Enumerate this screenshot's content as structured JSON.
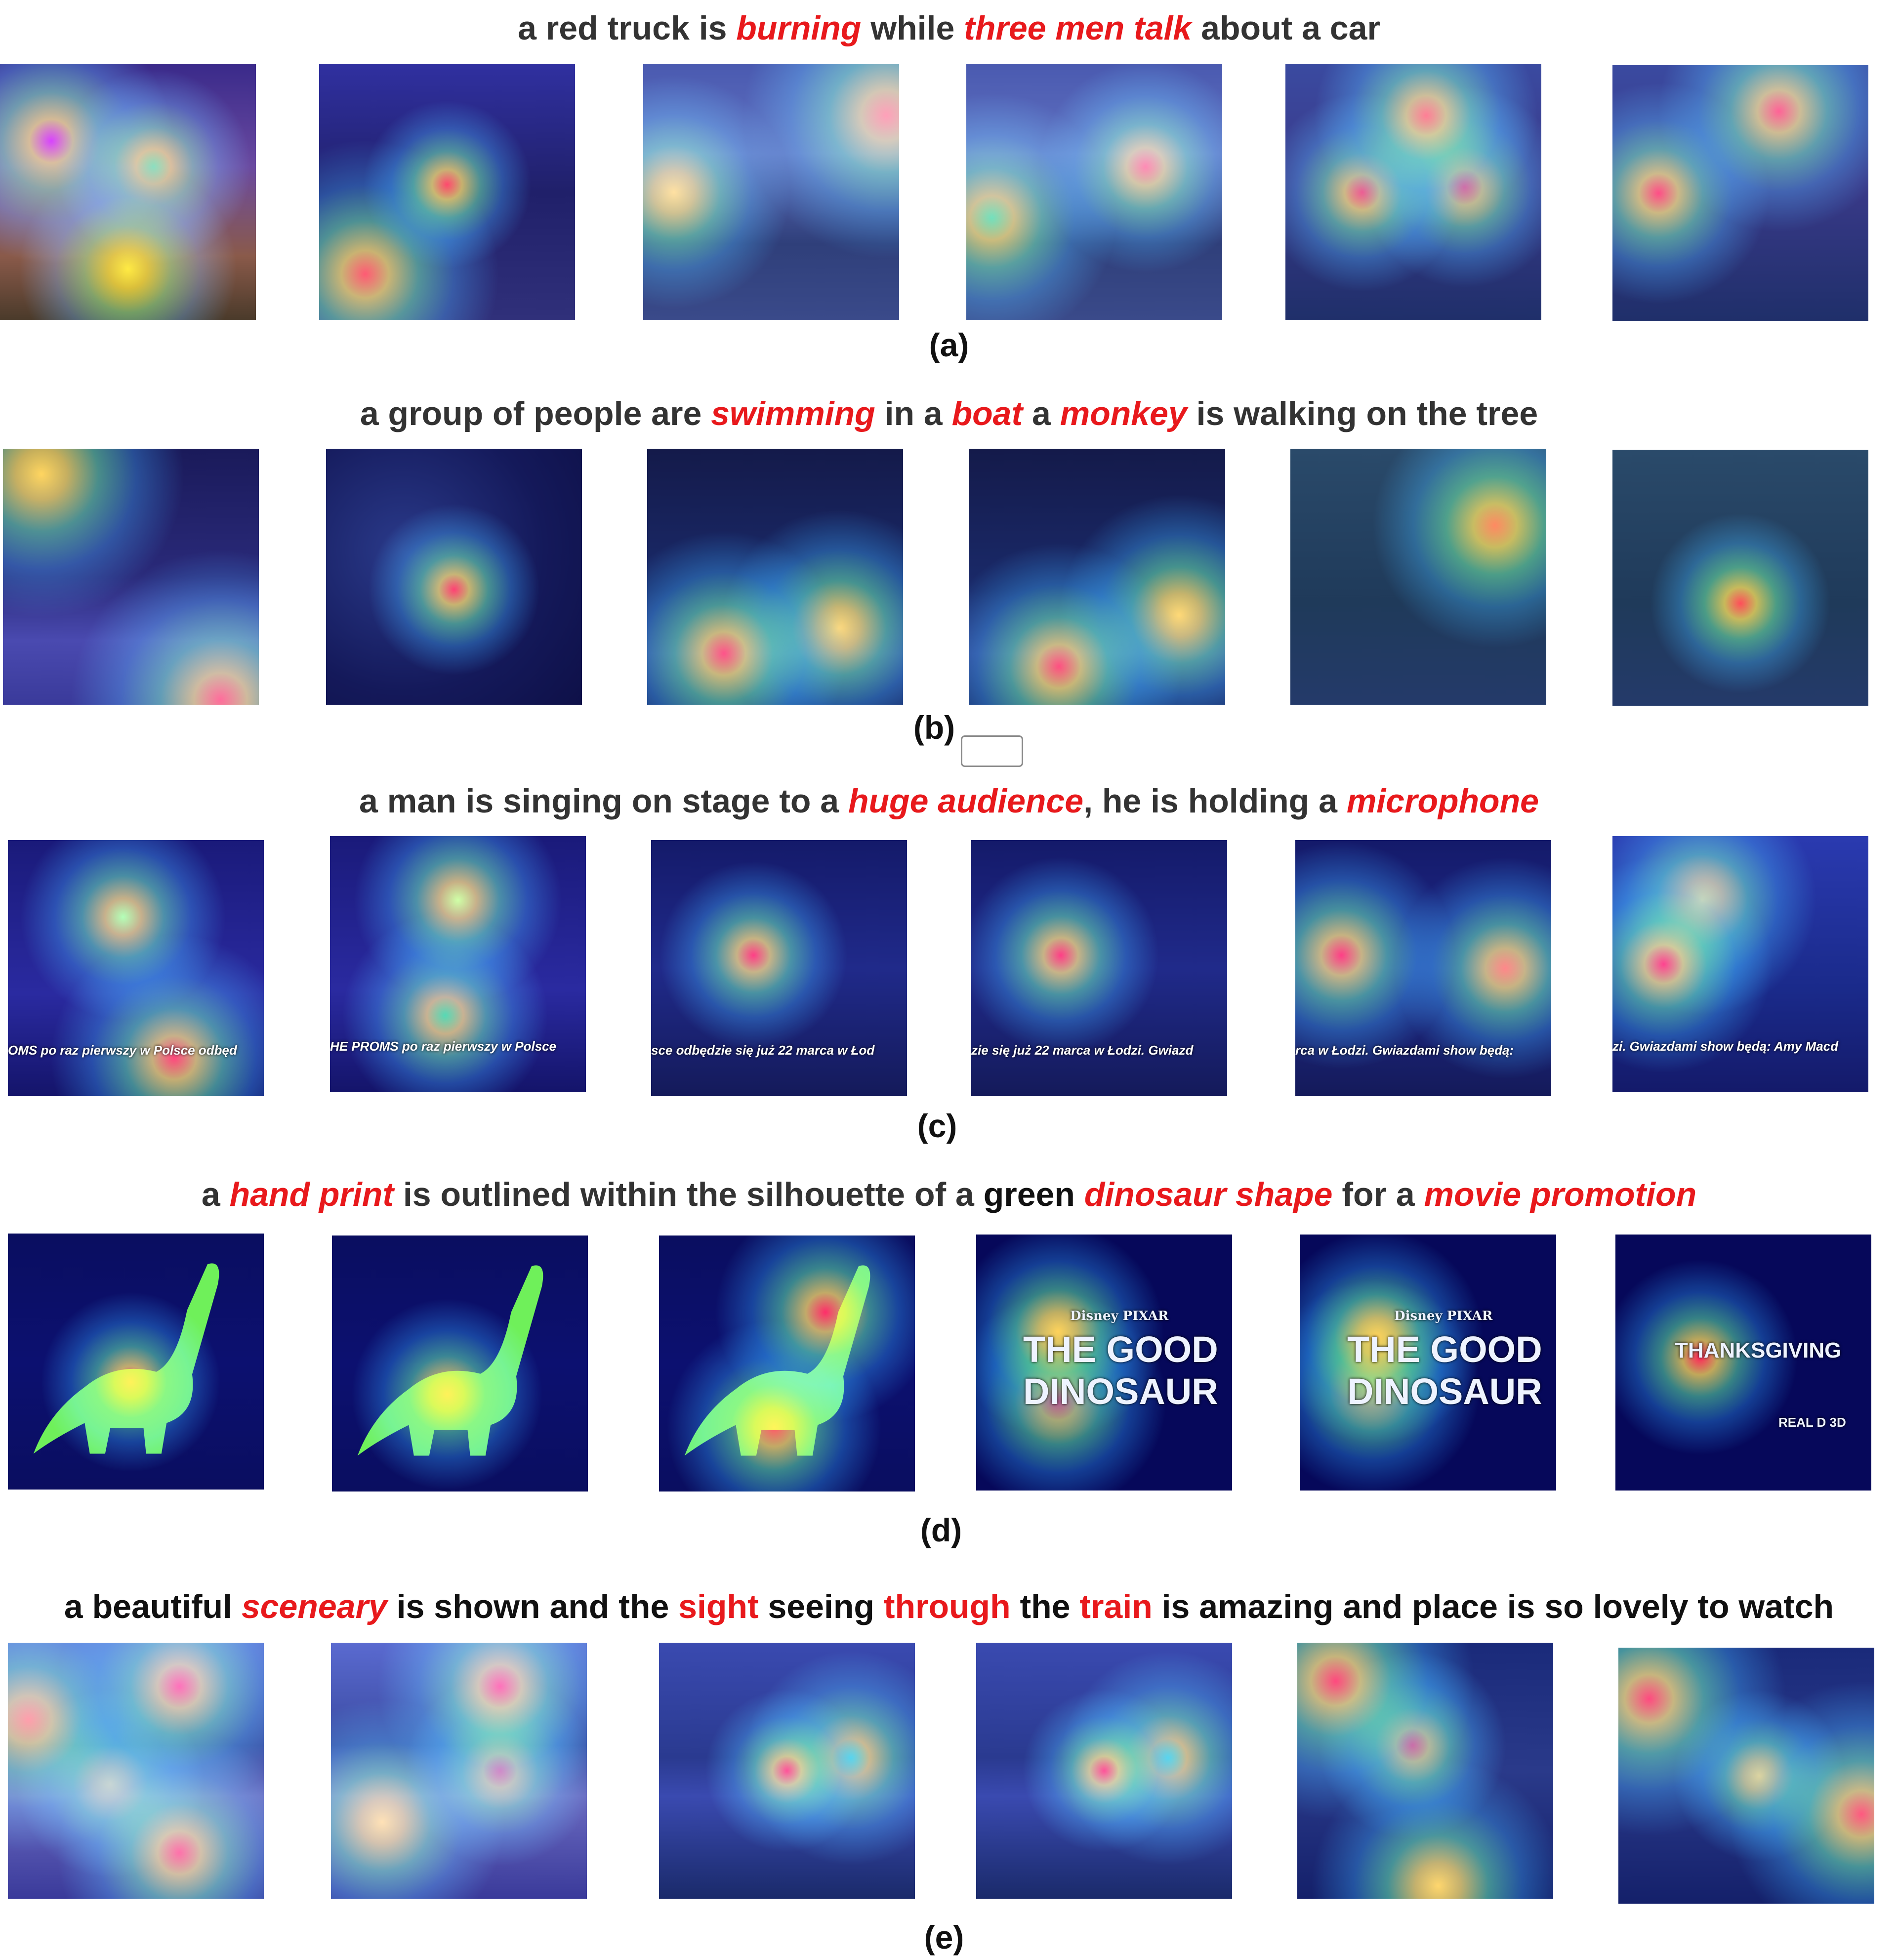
{
  "rows": [
    {
      "label": "(a)",
      "caption": [
        {
          "t": "a red truck is ",
          "s": "n"
        },
        {
          "t": "burning",
          "s": "h"
        },
        {
          "t": " while ",
          "s": "n"
        },
        {
          "t": "three men talk",
          "s": "h"
        },
        {
          "t": " about a car",
          "s": "n"
        }
      ],
      "frames": [
        {
          "scene": "fire",
          "heat": [
            [
              "50%",
              "80%",
              "#ffe000"
            ],
            [
              "60%",
              "40%",
              "#39d353"
            ],
            [
              "20%",
              "30%",
              "#c000ff"
            ]
          ]
        },
        {
          "scene": "night-truck",
          "heat": [
            [
              "50%",
              "47%",
              "#ff2d00"
            ],
            [
              "18%",
              "82%",
              "#ff3a00"
            ]
          ]
        },
        {
          "scene": "men-field",
          "heat": [
            [
              "12%",
              "50%",
              "#ffd000"
            ],
            [
              "95%",
              "20%",
              "#ff6000"
            ]
          ]
        },
        {
          "scene": "men-field",
          "heat": [
            [
              "70%",
              "40%",
              "#ff3a00"
            ],
            [
              "10%",
              "60%",
              "#46d36b"
            ]
          ]
        },
        {
          "scene": "fire-truck",
          "heat": [
            [
              "55%",
              "20%",
              "#ff5000"
            ],
            [
              "30%",
              "50%",
              "#ff2000"
            ],
            [
              "70%",
              "48%",
              "#ff2000"
            ]
          ]
        },
        {
          "scene": "fire-truck",
          "heat": [
            [
              "65%",
              "18%",
              "#ff2a00"
            ],
            [
              "18%",
              "50%",
              "#ff1a00"
            ]
          ]
        }
      ]
    },
    {
      "label": "(b)",
      "caption": [
        {
          "t": "a group of people are ",
          "s": "n"
        },
        {
          "t": "swimming",
          "s": "h"
        },
        {
          "t": " in a ",
          "s": "n"
        },
        {
          "t": "boat",
          "s": "h"
        },
        {
          "t": " a ",
          "s": "n"
        },
        {
          "t": "monkey",
          "s": "h"
        },
        {
          "t": " is walking on the tree",
          "s": "n"
        }
      ],
      "frames": [
        {
          "scene": "kayak",
          "heat": [
            [
              "15%",
              "10%",
              "#ffd000"
            ],
            [
              "85%",
              "98%",
              "#ff4000"
            ]
          ]
        },
        {
          "scene": "forest",
          "heat": [
            [
              "50%",
              "55%",
              "#ff1a00"
            ]
          ]
        },
        {
          "scene": "river-forest",
          "heat": [
            [
              "30%",
              "80%",
              "#ff2000"
            ],
            [
              "75%",
              "70%",
              "#ffd000"
            ]
          ]
        },
        {
          "scene": "river-forest",
          "heat": [
            [
              "35%",
              "85%",
              "#ff2000"
            ],
            [
              "82%",
              "65%",
              "#ffd000"
            ]
          ]
        },
        {
          "scene": "monkey-tree",
          "heat": [
            [
              "80%",
              "30%",
              "#ff6000"
            ]
          ]
        },
        {
          "scene": "monkey-tree",
          "heat": [
            [
              "50%",
              "60%",
              "#ff1a00"
            ]
          ]
        }
      ]
    },
    {
      "label": "(c)",
      "caption": [
        {
          "t": "a man is singing on stage to a ",
          "s": "n"
        },
        {
          "t": "huge audience",
          "s": "h"
        },
        {
          "t": ", he is holding a ",
          "s": "n"
        },
        {
          "t": "microphone",
          "s": "h"
        }
      ],
      "frames": [
        {
          "scene": "singer",
          "heat": [
            [
              "45%",
              "30%",
              "#a8ff60"
            ],
            [
              "65%",
              "85%",
              "#ff3000"
            ]
          ],
          "ticker": "OMS po raz pierwszy w Polsce odbęd"
        },
        {
          "scene": "singer",
          "heat": [
            [
              "50%",
              "25%",
              "#c8ff40"
            ],
            [
              "45%",
              "70%",
              "#39d353"
            ]
          ],
          "ticker": "HE PROMS po raz pierwszy w Polsce"
        },
        {
          "scene": "stage",
          "heat": [
            [
              "40%",
              "45%",
              "#ff1a00"
            ]
          ],
          "ticker": "sce odbędzie się już 22 marca w Łod"
        },
        {
          "scene": "stage",
          "heat": [
            [
              "35%",
              "45%",
              "#ff1a00"
            ]
          ],
          "ticker": "zie się już 22 marca w Łodzi. Gwiazd"
        },
        {
          "scene": "stage",
          "heat": [
            [
              "18%",
              "45%",
              "#ff1a00"
            ],
            [
              "82%",
              "50%",
              "#ff7000"
            ]
          ],
          "ticker": "rca w Łodzi. Gwiazdami show będą:"
        },
        {
          "scene": "singer2",
          "heat": [
            [
              "20%",
              "50%",
              "#ff1a00"
            ],
            [
              "35%",
              "25%",
              "#ffe000"
            ]
          ],
          "ticker": "zi. Gwiazdami show będą: Amy Macd"
        }
      ]
    },
    {
      "label": "(d)",
      "caption": [
        {
          "t": "a ",
          "s": "n"
        },
        {
          "t": "hand print",
          "s": "h"
        },
        {
          "t": " is outlined within the silhouette of a ",
          "s": "n"
        },
        {
          "t": "green",
          "s": "b"
        },
        {
          "t": " ",
          "s": "n"
        },
        {
          "t": "dinosaur shape",
          "s": "h"
        },
        {
          "t": " for a ",
          "s": "n"
        },
        {
          "t": "movie promotion",
          "s": "h"
        }
      ],
      "frames": [
        {
          "scene": "dino",
          "heat": [
            [
              "48%",
              "58%",
              "#ff1a00"
            ]
          ]
        },
        {
          "scene": "dino",
          "heat": [
            [
              "45%",
              "62%",
              "#ff1a00"
            ]
          ]
        },
        {
          "scene": "dino",
          "heat": [
            [
              "65%",
              "30%",
              "#ff2000"
            ],
            [
              "45%",
              "75%",
              "#ff5000"
            ]
          ]
        },
        {
          "scene": "title",
          "heat": [
            [
              "32%",
              "38%",
              "#ffd000"
            ],
            [
              "32%",
              "65%",
              "#ff3000"
            ]
          ],
          "t1": "Disney PIXAR",
          "t2": "THE GOOD",
          "t3": "DINOSAUR"
        },
        {
          "scene": "title",
          "heat": [
            [
              "30%",
              "40%",
              "#ffd000"
            ],
            [
              "28%",
              "60%",
              "#ffd000"
            ]
          ],
          "t1": "Disney PIXAR",
          "t2": "THE GOOD",
          "t3": "DINOSAUR"
        },
        {
          "scene": "thanks",
          "heat": [
            [
              "33%",
              "48%",
              "#ff2000"
            ]
          ],
          "t2": "THANKSGIVING",
          "t4": "REAL D 3D"
        }
      ]
    },
    {
      "label": "(e)",
      "caption": [
        {
          "t": "a beautiful ",
          "s": "b"
        },
        {
          "t": "sceneary",
          "s": "h"
        },
        {
          "t": " is shown and the ",
          "s": "b"
        },
        {
          "t": "sight",
          "s": "p"
        },
        {
          "t": " seeing ",
          "s": "b"
        },
        {
          "t": "through",
          "s": "p"
        },
        {
          "t": " the ",
          "s": "b"
        },
        {
          "t": "train",
          "s": "p"
        },
        {
          "t": " is amazing and place is so lovely to watch",
          "s": "b"
        }
      ],
      "frames": [
        {
          "scene": "lake",
          "heat": [
            [
              "67%",
              "17%",
              "#ff2000"
            ],
            [
              "67%",
              "82%",
              "#ff3000"
            ],
            [
              "8%",
              "30%",
              "#ff7000"
            ],
            [
              "40%",
              "55%",
              "#ffd000"
            ]
          ]
        },
        {
          "scene": "lake",
          "heat": [
            [
              "66%",
              "17%",
              "#ff2000"
            ],
            [
              "66%",
              "50%",
              "#ff2000"
            ],
            [
              "20%",
              "70%",
              "#ffd000"
            ]
          ]
        },
        {
          "scene": "lake-town",
          "heat": [
            [
              "50%",
              "50%",
              "#ff1a00"
            ],
            [
              "75%",
              "45%",
              "#39d3d3"
            ]
          ]
        },
        {
          "scene": "lake-town",
          "heat": [
            [
              "50%",
              "50%",
              "#ff1a00"
            ],
            [
              "75%",
              "45%",
              "#39d3d3"
            ]
          ]
        },
        {
          "scene": "train",
          "heat": [
            [
              "15%",
              "15%",
              "#ff2000"
            ],
            [
              "45%",
              "40%",
              "#ff2000"
            ],
            [
              "55%",
              "95%",
              "#ffd000"
            ]
          ]
        },
        {
          "scene": "train",
          "heat": [
            [
              "12%",
              "20%",
              "#ff2000"
            ],
            [
              "95%",
              "65%",
              "#ff3000"
            ],
            [
              "55%",
              "50%",
              "#ffd000"
            ]
          ]
        }
      ]
    }
  ]
}
